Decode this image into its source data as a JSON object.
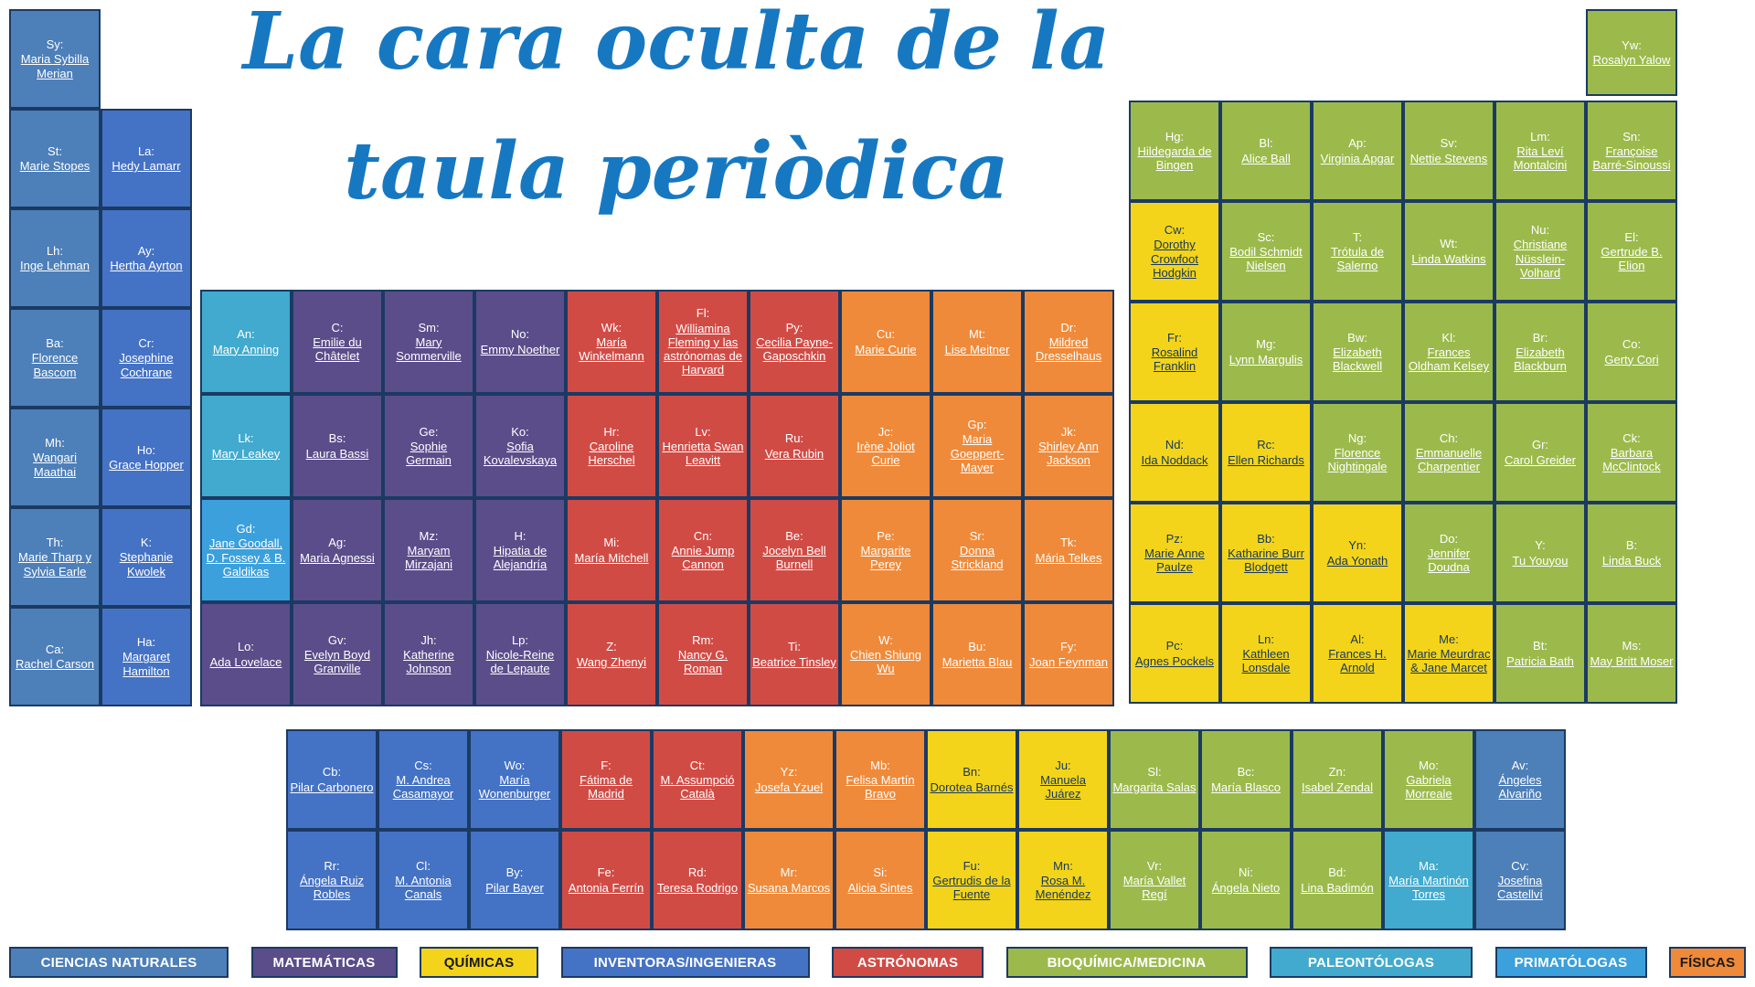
{
  "title": {
    "line1": "La cara oculta de la",
    "line2": "taula periòdica",
    "color": "#1778c2"
  },
  "categories": {
    "nat": {
      "label": "CIENCIAS NATURALES",
      "color": "#4d7fb9",
      "cellText": "#ffffff",
      "legendText": "#ffffff"
    },
    "mat": {
      "label": "MATEMÁTICAS",
      "color": "#5a4d8a",
      "cellText": "#ffffff",
      "legendText": "#ffffff"
    },
    "qui": {
      "label": "QUÍMICAS",
      "color": "#f3d41a",
      "cellText": "#17375e",
      "legendText": "#1a1a1a"
    },
    "inv": {
      "label": "INVENTORAS/INGENIERAS",
      "color": "#4472c4",
      "cellText": "#ffffff",
      "legendText": "#ffffff"
    },
    "ast": {
      "label": "ASTRÓNOMAS",
      "color": "#d14b45",
      "cellText": "#ffffff",
      "legendText": "#ffffff"
    },
    "bio": {
      "label": "BIOQUÍMICA/MEDICINA",
      "color": "#9cba4c",
      "cellText": "#ffffff",
      "legendText": "#ffffff"
    },
    "pal": {
      "label": "PALEONTÓLOGAS",
      "color": "#41aace",
      "cellText": "#ffffff",
      "legendText": "#ffffff"
    },
    "pri": {
      "label": "PRIMATÓLOGAS",
      "color": "#3ba0dc",
      "cellText": "#ffffff",
      "legendText": "#ffffff"
    },
    "fis": {
      "label": "FÍSICAS",
      "color": "#ef8a3a",
      "cellText": "#ffffff",
      "legendText": "#1a1a1a"
    }
  },
  "legend_order": [
    "nat",
    "mat",
    "qui",
    "inv",
    "ast",
    "bio",
    "pal",
    "pri",
    "fis"
  ],
  "blocks": {
    "left": {
      "rows": [
        [
          {
            "s": "Sy:",
            "n": "Maria Sybilla Merian",
            "c": "nat"
          },
          null
        ],
        [
          {
            "s": "St:",
            "n": "Marie Stopes",
            "c": "nat"
          },
          {
            "s": "La:",
            "n": "Hedy Lamarr",
            "c": "inv"
          }
        ],
        [
          {
            "s": "Lh:",
            "n": "Inge Lehman",
            "c": "nat"
          },
          {
            "s": "Ay:",
            "n": "Hertha Ayrton",
            "c": "inv"
          }
        ],
        [
          {
            "s": "Ba:",
            "n": "Florence Bascom",
            "c": "nat"
          },
          {
            "s": "Cr:",
            "n": "Josephine Cochrane",
            "c": "inv"
          }
        ],
        [
          {
            "s": "Mh:",
            "n": "Wangari Maathai",
            "c": "nat"
          },
          {
            "s": "Ho:",
            "n": "Grace Hopper",
            "c": "inv"
          }
        ],
        [
          {
            "s": "Th:",
            "n": "Marie Tharp y Sylvia Earle",
            "c": "nat"
          },
          {
            "s": "K:",
            "n": "Stephanie Kwolek",
            "c": "inv"
          }
        ],
        [
          {
            "s": "Ca:",
            "n": "Rachel Carson",
            "c": "nat"
          },
          {
            "s": "Ha:",
            "n": "Margaret Hamilton",
            "c": "inv"
          }
        ]
      ]
    },
    "main": {
      "rows": [
        [
          {
            "s": "An:",
            "n": "Mary Anning",
            "c": "pal"
          },
          {
            "s": "C:",
            "n": "Emilie du Châtelet",
            "c": "mat"
          },
          {
            "s": "Sm:",
            "n": "Mary Sommerville",
            "c": "mat"
          },
          {
            "s": "No:",
            "n": "Emmy Noether",
            "c": "mat"
          },
          {
            "s": "Wk:",
            "n": "María Winkelmann",
            "c": "ast"
          },
          {
            "s": "Fl:",
            "n": "Williamina Fleming y las astrónomas de Harvard",
            "c": "ast"
          },
          {
            "s": "Py:",
            "n": "Cecilia Payne-Gaposchkin",
            "c": "ast"
          },
          {
            "s": "Cu:",
            "n": "Marie Curie",
            "c": "fis"
          },
          {
            "s": "Mt:",
            "n": "Lise Meitner",
            "c": "fis"
          },
          {
            "s": "Dr:",
            "n": "Mildred Dresselhaus",
            "c": "fis"
          }
        ],
        [
          {
            "s": "Lk:",
            "n": "Mary Leakey",
            "c": "pal"
          },
          {
            "s": "Bs:",
            "n": "Laura Bassi",
            "c": "mat"
          },
          {
            "s": "Ge:",
            "n": "Sophie Germain",
            "c": "mat"
          },
          {
            "s": "Ko:",
            "n": "Sofia Kovalevskaya",
            "c": "mat"
          },
          {
            "s": "Hr:",
            "n": "Caroline Herschel",
            "c": "ast"
          },
          {
            "s": "Lv:",
            "n": "Henrietta Swan Leavitt",
            "c": "ast"
          },
          {
            "s": "Ru:",
            "n": "Vera Rubin",
            "c": "ast"
          },
          {
            "s": "Jc:",
            "n": "Irène Joliot Curie",
            "c": "fis"
          },
          {
            "s": "Gp:",
            "n": "Maria Goeppert-Mayer",
            "c": "fis"
          },
          {
            "s": "Jk:",
            "n": "Shirley Ann Jackson",
            "c": "fis"
          }
        ],
        [
          {
            "s": "Gd:",
            "n": "Jane Goodall, D. Fossey & B. Galdikas",
            "c": "pri"
          },
          {
            "s": "Ag:",
            "n": "Maria Agnessi",
            "c": "mat"
          },
          {
            "s": "Mz:",
            "n": "Maryam Mirzajani",
            "c": "mat"
          },
          {
            "s": "H:",
            "n": "Hipatia de Alejandría",
            "c": "mat"
          },
          {
            "s": "Mi:",
            "n": "María Mitchell",
            "c": "ast"
          },
          {
            "s": "Cn:",
            "n": "Annie Jump Cannon",
            "c": "ast"
          },
          {
            "s": "Be:",
            "n": "Jocelyn Bell Burnell",
            "c": "ast"
          },
          {
            "s": "Pe:",
            "n": "Margarite Perey",
            "c": "fis"
          },
          {
            "s": "Sr:",
            "n": "Donna Strickland",
            "c": "fis"
          },
          {
            "s": "Tk:",
            "n": "Mária Telkes",
            "c": "fis"
          }
        ],
        [
          {
            "s": "Lo:",
            "n": "Ada Lovelace",
            "c": "mat"
          },
          {
            "s": "Gv:",
            "n": "Evelyn Boyd Granville",
            "c": "mat"
          },
          {
            "s": "Jh:",
            "n": "Katherine Johnson",
            "c": "mat"
          },
          {
            "s": "Lp:",
            "n": "Nicole-Reine de Lepaute",
            "c": "mat"
          },
          {
            "s": "Z:",
            "n": "Wang Zhenyi",
            "c": "ast"
          },
          {
            "s": "Rm:",
            "n": "Nancy G. Roman",
            "c": "ast"
          },
          {
            "s": "Ti:",
            "n": "Beatrice Tinsley",
            "c": "ast"
          },
          {
            "s": "W:",
            "n": "Chien Shiung Wu",
            "c": "fis"
          },
          {
            "s": "Bu:",
            "n": "Marietta Blau",
            "c": "fis"
          },
          {
            "s": "Fy:",
            "n": "Joan Feynman",
            "c": "fis"
          }
        ]
      ]
    },
    "right": {
      "rows": [
        [
          {
            "s": "Hg:",
            "n": "Hildegarda de Bingen",
            "c": "bio"
          },
          {
            "s": "Bl:",
            "n": "Alice Ball",
            "c": "bio"
          },
          {
            "s": "Ap:",
            "n": "Virginia Apgar",
            "c": "bio"
          },
          {
            "s": "Sv:",
            "n": "Nettie Stevens",
            "c": "bio"
          },
          {
            "s": "Lm:",
            "n": "Rita Leví Montalcini",
            "c": "bio"
          },
          {
            "s": "Sn:",
            "n": "Françoise Barré-Sinoussi",
            "c": "bio"
          }
        ],
        [
          {
            "s": "Cw:",
            "n": "Dorothy Crowfoot Hodgkin",
            "c": "qui"
          },
          {
            "s": "Sc:",
            "n": "Bodil Schmidt Nielsen",
            "c": "bio"
          },
          {
            "s": "T:",
            "n": "Trótula de Salerno",
            "c": "bio"
          },
          {
            "s": "Wt:",
            "n": "Linda Watkins",
            "c": "bio"
          },
          {
            "s": "Nu:",
            "n": "Christiane Nüsslein-Volhard",
            "c": "bio"
          },
          {
            "s": "El:",
            "n": "Gertrude B. Elion",
            "c": "bio"
          }
        ],
        [
          {
            "s": "Fr:",
            "n": "Rosalind Franklin",
            "c": "qui"
          },
          {
            "s": "Mg:",
            "n": "Lynn Margulis",
            "c": "bio"
          },
          {
            "s": "Bw:",
            "n": "Elizabeth Blackwell",
            "c": "bio"
          },
          {
            "s": "Kl:",
            "n": "Frances Oldham Kelsey",
            "c": "bio"
          },
          {
            "s": "Br:",
            "n": "Elizabeth Blackburn",
            "c": "bio"
          },
          {
            "s": "Co:",
            "n": "Gerty Cori",
            "c": "bio"
          }
        ],
        [
          {
            "s": "Nd:",
            "n": "Ida Noddack",
            "c": "qui"
          },
          {
            "s": "Rc:",
            "n": "Ellen Richards",
            "c": "qui"
          },
          {
            "s": "Ng:",
            "n": "Florence Nightingale",
            "c": "bio"
          },
          {
            "s": "Ch:",
            "n": "Emmanuelle Charpentier",
            "c": "bio"
          },
          {
            "s": "Gr:",
            "n": "Carol Greider",
            "c": "bio"
          },
          {
            "s": "Ck:",
            "n": "Barbara McClintock",
            "c": "bio"
          }
        ],
        [
          {
            "s": "Pz:",
            "n": "Marie Anne Paulze",
            "c": "qui"
          },
          {
            "s": "Bb:",
            "n": "Katharine Burr Blodgett",
            "c": "qui"
          },
          {
            "s": "Yn:",
            "n": "Ada Yonath",
            "c": "qui"
          },
          {
            "s": "Do:",
            "n": "Jennifer Doudna",
            "c": "bio"
          },
          {
            "s": "Y:",
            "n": "Tu Youyou",
            "c": "bio"
          },
          {
            "s": "B:",
            "n": "Linda Buck",
            "c": "bio"
          }
        ],
        [
          {
            "s": "Pc:",
            "n": "Agnes Pockels",
            "c": "qui"
          },
          {
            "s": "Ln:",
            "n": "Kathleen Lonsdale",
            "c": "qui"
          },
          {
            "s": "Al:",
            "n": "Frances H. Arnold",
            "c": "qui"
          },
          {
            "s": "Me:",
            "n": "Marie Meurdrac & Jane Marcet",
            "c": "qui"
          },
          {
            "s": "Bt:",
            "n": "Patricia Bath",
            "c": "bio"
          },
          {
            "s": "Ms:",
            "n": "May Britt Moser",
            "c": "bio"
          }
        ]
      ]
    },
    "helium": {
      "rows": [
        [
          {
            "s": "Yw:",
            "n": "Rosalyn Yalow",
            "c": "bio"
          }
        ]
      ]
    },
    "bottom": {
      "rows": [
        [
          {
            "s": "Cb:",
            "n": "Pilar Carbonero",
            "c": "inv"
          },
          {
            "s": "Cs:",
            "n": "M. Andrea Casamayor",
            "c": "inv"
          },
          {
            "s": "Wo:",
            "n": "María Wonenburger",
            "c": "inv"
          },
          {
            "s": "F:",
            "n": "Fátima de Madrid",
            "c": "ast"
          },
          {
            "s": "Ct:",
            "n": "M. Assumpció Català",
            "c": "ast"
          },
          {
            "s": "Yz:",
            "n": "Josefa Yzuel",
            "c": "fis"
          },
          {
            "s": "Mb:",
            "n": "Felisa Martín Bravo",
            "c": "fis"
          },
          {
            "s": "Bn:",
            "n": "Dorotea Barnés",
            "c": "qui"
          },
          {
            "s": "Ju:",
            "n": "Manuela Juárez",
            "c": "qui"
          },
          {
            "s": "Sl:",
            "n": "Margarita Salas",
            "c": "bio"
          },
          {
            "s": "Bc:",
            "n": "María Blasco",
            "c": "bio"
          },
          {
            "s": "Zn:",
            "n": "Isabel Zendal",
            "c": "bio"
          },
          {
            "s": "Mo:",
            "n": "Gabriela Morreale",
            "c": "bio"
          },
          {
            "s": "Av:",
            "n": "Ángeles Alvariño",
            "c": "nat"
          }
        ],
        [
          {
            "s": "Rr:",
            "n": "Ángela Ruiz Robles",
            "c": "inv"
          },
          {
            "s": "Cl:",
            "n": "M. Antonia Canals",
            "c": "inv"
          },
          {
            "s": "By:",
            "n": "Pilar Bayer",
            "c": "inv"
          },
          {
            "s": "Fe:",
            "n": "Antonia Ferrín",
            "c": "ast"
          },
          {
            "s": "Rd:",
            "n": "Teresa Rodrigo",
            "c": "ast"
          },
          {
            "s": "Mr:",
            "n": "Susana Marcos",
            "c": "fis"
          },
          {
            "s": "Si:",
            "n": "Alicia Sintes",
            "c": "fis"
          },
          {
            "s": "Fu:",
            "n": "Gertrudis de la Fuente",
            "c": "qui"
          },
          {
            "s": "Mn:",
            "n": "Rosa M. Menéndez",
            "c": "qui"
          },
          {
            "s": "Vr:",
            "n": "María Vallet Regí",
            "c": "bio"
          },
          {
            "s": "Ni:",
            "n": "Ángela Nieto",
            "c": "bio"
          },
          {
            "s": "Bd:",
            "n": "Lina Badimón",
            "c": "bio"
          },
          {
            "s": "Ma:",
            "n": "María Martinón Torres",
            "c": "pal"
          },
          {
            "s": "Cv:",
            "n": "Josefina Castellví",
            "c": "nat"
          }
        ]
      ]
    }
  }
}
